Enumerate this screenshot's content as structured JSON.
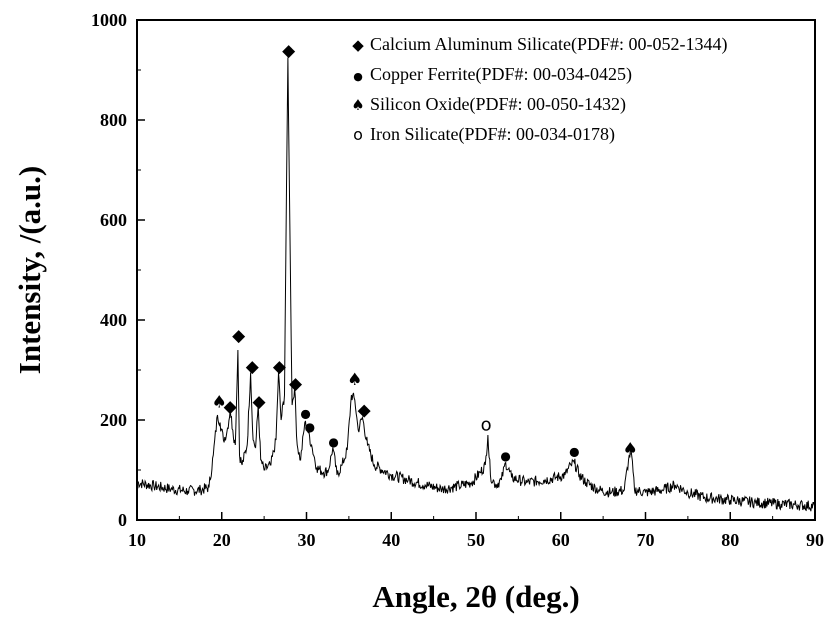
{
  "chart_data": {
    "type": "line",
    "xlabel": "Angle, 2θ (deg.)",
    "ylabel": "Intensity, /(a.u.)",
    "xlim": [
      10,
      90
    ],
    "ylim": [
      0,
      1000
    ],
    "x_ticks": [
      10,
      20,
      30,
      40,
      50,
      60,
      70,
      80,
      90
    ],
    "y_ticks": [
      0,
      200,
      400,
      600,
      800,
      1000
    ],
    "legend_position": "top-right",
    "legend": [
      {
        "symbol": "◆",
        "symbol_name": "diamond-icon",
        "label": "Calcium Aluminum Silicate(PDF#: 00-052-1344)"
      },
      {
        "symbol": "●",
        "symbol_name": "filled-circle-icon",
        "label": "Copper Ferrite(PDF#: 00-034-0425)"
      },
      {
        "symbol": "♠",
        "symbol_name": "spade-icon",
        "label": "Silicon Oxide(PDF#: 00-050-1432)"
      },
      {
        "symbol": "o",
        "symbol_name": "open-circle-icon",
        "label": "Iron Silicate(PDF#: 00-034-0178)"
      }
    ],
    "series": [
      {
        "color": "#000000",
        "x": [
          10,
          12,
          14,
          16,
          17.5,
          18.5,
          19.0,
          19.5,
          19.8,
          20.2,
          20.6,
          21.0,
          21.3,
          21.6,
          21.9,
          22.1,
          22.4,
          23.0,
          23.4,
          23.7,
          24.0,
          24.3,
          24.6,
          25.0,
          25.8,
          26.4,
          26.7,
          27.0,
          27.4,
          27.8,
          28.1,
          28.3,
          28.6,
          28.9,
          29.3,
          29.8,
          30.2,
          30.6,
          31.2,
          32.0,
          32.6,
          33.1,
          33.6,
          34.2,
          34.8,
          35.3,
          35.7,
          36.1,
          36.6,
          37.2,
          38.0,
          40,
          42,
          44,
          46,
          48,
          49.5,
          50.5,
          51.1,
          51.4,
          51.7,
          52.3,
          53.0,
          53.5,
          54.2,
          56,
          58,
          59.5,
          60.5,
          61.2,
          61.6,
          62.2,
          63,
          64.5,
          66,
          67.5,
          68.0,
          68.3,
          68.7,
          70,
          72,
          73.5,
          75,
          77,
          80,
          83,
          86,
          88,
          90
        ],
        "y": [
          75,
          68,
          62,
          58,
          60,
          65,
          130,
          210,
          195,
          160,
          175,
          220,
          180,
          150,
          340,
          130,
          110,
          150,
          295,
          160,
          145,
          230,
          120,
          100,
          110,
          160,
          295,
          200,
          250,
          925,
          500,
          230,
          265,
          150,
          120,
          195,
          175,
          150,
          105,
          95,
          100,
          145,
          90,
          110,
          140,
          250,
          240,
          180,
          205,
          150,
          110,
          90,
          80,
          70,
          62,
          68,
          75,
          95,
          110,
          170,
          90,
          70,
          80,
          115,
          85,
          75,
          80,
          85,
          90,
          110,
          115,
          90,
          75,
          60,
          55,
          60,
          120,
          140,
          60,
          55,
          60,
          70,
          55,
          45,
          40,
          35,
          32,
          30,
          28
        ]
      }
    ],
    "markers": [
      {
        "x": 19.7,
        "y": 237,
        "symbol": "♠"
      },
      {
        "x": 21.0,
        "y": 228,
        "symbol": "◆"
      },
      {
        "x": 22.0,
        "y": 370,
        "symbol": "◆"
      },
      {
        "x": 23.6,
        "y": 308,
        "symbol": "◆"
      },
      {
        "x": 24.4,
        "y": 238,
        "symbol": "◆"
      },
      {
        "x": 26.8,
        "y": 308,
        "symbol": "◆"
      },
      {
        "x": 27.9,
        "y": 940,
        "symbol": "◆"
      },
      {
        "x": 28.7,
        "y": 274,
        "symbol": "◆"
      },
      {
        "x": 29.9,
        "y": 213,
        "symbol": "●"
      },
      {
        "x": 30.4,
        "y": 186,
        "symbol": "●"
      },
      {
        "x": 33.2,
        "y": 156,
        "symbol": "●"
      },
      {
        "x": 35.7,
        "y": 282,
        "symbol": "♠"
      },
      {
        "x": 36.8,
        "y": 221,
        "symbol": "◆"
      },
      {
        "x": 51.2,
        "y": 192,
        "symbol": "o"
      },
      {
        "x": 53.5,
        "y": 128,
        "symbol": "●"
      },
      {
        "x": 61.6,
        "y": 137,
        "symbol": "●"
      },
      {
        "x": 68.2,
        "y": 143,
        "symbol": "♠"
      }
    ]
  }
}
